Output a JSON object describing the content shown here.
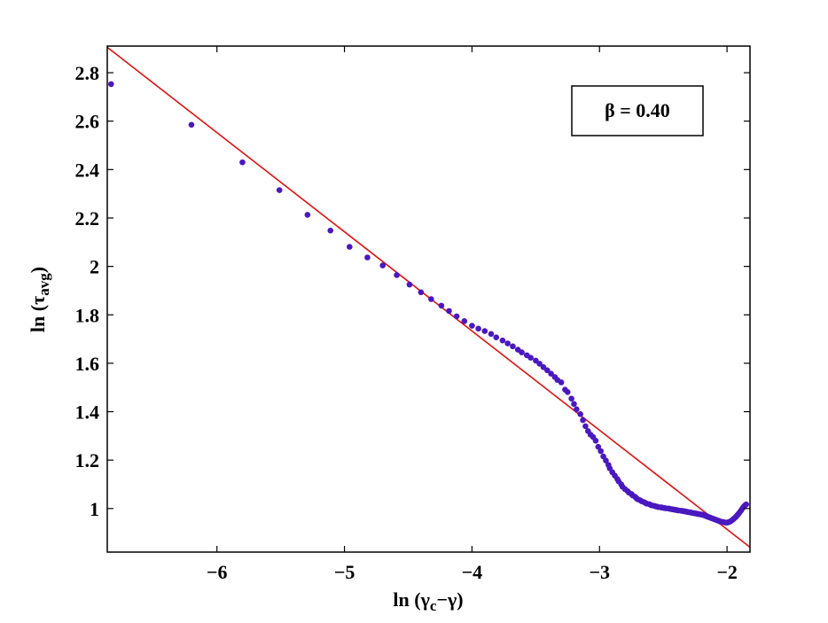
{
  "chart_data": {
    "type": "scatter",
    "xlabel": "ln (γc−γ)",
    "xlabel_parts": {
      "prefix": "ln (γ",
      "sub": "c",
      "suffix": "−γ)"
    },
    "ylabel": "ln (τavg)",
    "ylabel_parts": {
      "prefix": "ln (τ",
      "sub": "avg",
      "suffix": ")"
    },
    "xlim": [
      -6.86,
      -1.82
    ],
    "ylim": [
      0.82,
      2.91
    ],
    "xticks": [
      -6,
      -5,
      -4,
      -3,
      -2
    ],
    "xtick_labels": [
      "−6",
      "−5",
      "−4",
      "−3",
      "−2"
    ],
    "yticks": [
      1,
      1.2,
      1.4,
      1.6,
      1.8,
      2,
      2.2,
      2.4,
      2.6,
      2.8
    ],
    "ytick_labels": [
      "1",
      "1.2",
      "1.4",
      "1.6",
      "1.8",
      "2",
      "2.2",
      "2.4",
      "2.6",
      "2.8"
    ],
    "grid": false,
    "legend": {
      "text": "β = 0.40",
      "placement": "top-right"
    },
    "fit_line": {
      "color": "#e01010",
      "x": [
        -6.86,
        -1.82
      ],
      "y": [
        2.905,
        0.84
      ]
    },
    "marker_color": "#4a18c0",
    "series": [
      {
        "x": [
          -6.83,
          -6.2,
          -5.8,
          -5.51,
          -5.29,
          -5.11,
          -4.96,
          -4.82,
          -4.7,
          -4.59,
          -4.49,
          -4.4,
          -4.32,
          -4.24,
          -4.18,
          -4.12,
          -4.06,
          -4.0,
          -3.95,
          -3.9,
          -3.85,
          -3.81,
          -3.76,
          -3.72,
          -3.68,
          -3.64,
          -3.61,
          -3.57,
          -3.54,
          -3.5,
          -3.47,
          -3.44,
          -3.41,
          -3.38,
          -3.35,
          -3.33,
          -3.3,
          -3.27,
          -3.25,
          -3.22,
          -3.2,
          -3.18,
          -3.15,
          -3.13,
          -3.11,
          -3.09,
          -3.07,
          -3.05,
          -3.03,
          -3.01,
          -2.99,
          -2.97,
          -2.95,
          -2.93,
          -2.92,
          -2.9,
          -2.88,
          -2.86,
          -2.85,
          -2.83,
          -2.82,
          -2.8,
          -2.78,
          -2.77,
          -2.75,
          -2.74,
          -2.72,
          -2.71,
          -2.7,
          -2.68,
          -2.67,
          -2.65,
          -2.64,
          -2.63,
          -2.61,
          -2.6,
          -2.59,
          -2.57,
          -2.56,
          -2.55,
          -2.54,
          -2.52,
          -2.51,
          -2.5,
          -2.49,
          -2.48,
          -2.46,
          -2.45,
          -2.44,
          -2.43,
          -2.42,
          -2.41,
          -2.4,
          -2.39,
          -2.38,
          -2.36,
          -2.35,
          -2.34,
          -2.33,
          -2.32,
          -2.31,
          -2.3,
          -2.29,
          -2.28,
          -2.27,
          -2.26,
          -2.25,
          -2.24,
          -2.23,
          -2.22,
          -2.21,
          -2.2,
          -2.19,
          -2.18,
          -2.17,
          -2.16,
          -2.15,
          -2.14,
          -2.13,
          -2.12,
          -2.11,
          -2.1,
          -2.09,
          -2.08,
          -2.07,
          -2.06,
          -2.05,
          -2.04,
          -2.03,
          -2.02,
          -2.01,
          -2.0,
          -1.99,
          -1.98,
          -1.97,
          -1.96,
          -1.95,
          -1.94,
          -1.93,
          -1.92,
          -1.91,
          -1.9,
          -1.89,
          -1.88,
          -1.87,
          -1.86,
          -1.85
        ],
        "y": [
          2.753,
          2.585,
          2.43,
          2.315,
          2.213,
          2.148,
          2.081,
          2.037,
          2.004,
          1.964,
          1.925,
          1.893,
          1.865,
          1.838,
          1.816,
          1.794,
          1.774,
          1.755,
          1.743,
          1.733,
          1.721,
          1.707,
          1.694,
          1.682,
          1.67,
          1.656,
          1.645,
          1.633,
          1.623,
          1.611,
          1.598,
          1.584,
          1.571,
          1.557,
          1.543,
          1.531,
          1.521,
          1.491,
          1.481,
          1.454,
          1.432,
          1.41,
          1.39,
          1.365,
          1.34,
          1.32,
          1.305,
          1.295,
          1.28,
          1.255,
          1.237,
          1.215,
          1.198,
          1.18,
          1.166,
          1.15,
          1.136,
          1.122,
          1.112,
          1.1,
          1.09,
          1.08,
          1.072,
          1.066,
          1.06,
          1.054,
          1.048,
          1.042,
          1.038,
          1.034,
          1.03,
          1.026,
          1.023,
          1.02,
          1.018,
          1.015,
          1.013,
          1.011,
          1.009,
          1.008,
          1.006,
          1.005,
          1.004,
          1.003,
          1.002,
          1.001,
          1.0,
          0.999,
          0.998,
          0.997,
          0.996,
          0.995,
          0.994,
          0.993,
          0.992,
          0.991,
          0.99,
          0.989,
          0.988,
          0.987,
          0.986,
          0.985,
          0.984,
          0.983,
          0.982,
          0.981,
          0.98,
          0.979,
          0.978,
          0.977,
          0.976,
          0.975,
          0.974,
          0.972,
          0.97,
          0.968,
          0.966,
          0.964,
          0.962,
          0.96,
          0.958,
          0.956,
          0.954,
          0.952,
          0.95,
          0.948,
          0.946,
          0.945,
          0.944,
          0.943,
          0.942,
          0.942,
          0.943,
          0.945,
          0.948,
          0.952,
          0.956,
          0.961,
          0.966,
          0.972,
          0.978,
          0.985,
          0.992,
          1.0,
          1.007,
          1.013,
          1.017
        ]
      }
    ]
  }
}
